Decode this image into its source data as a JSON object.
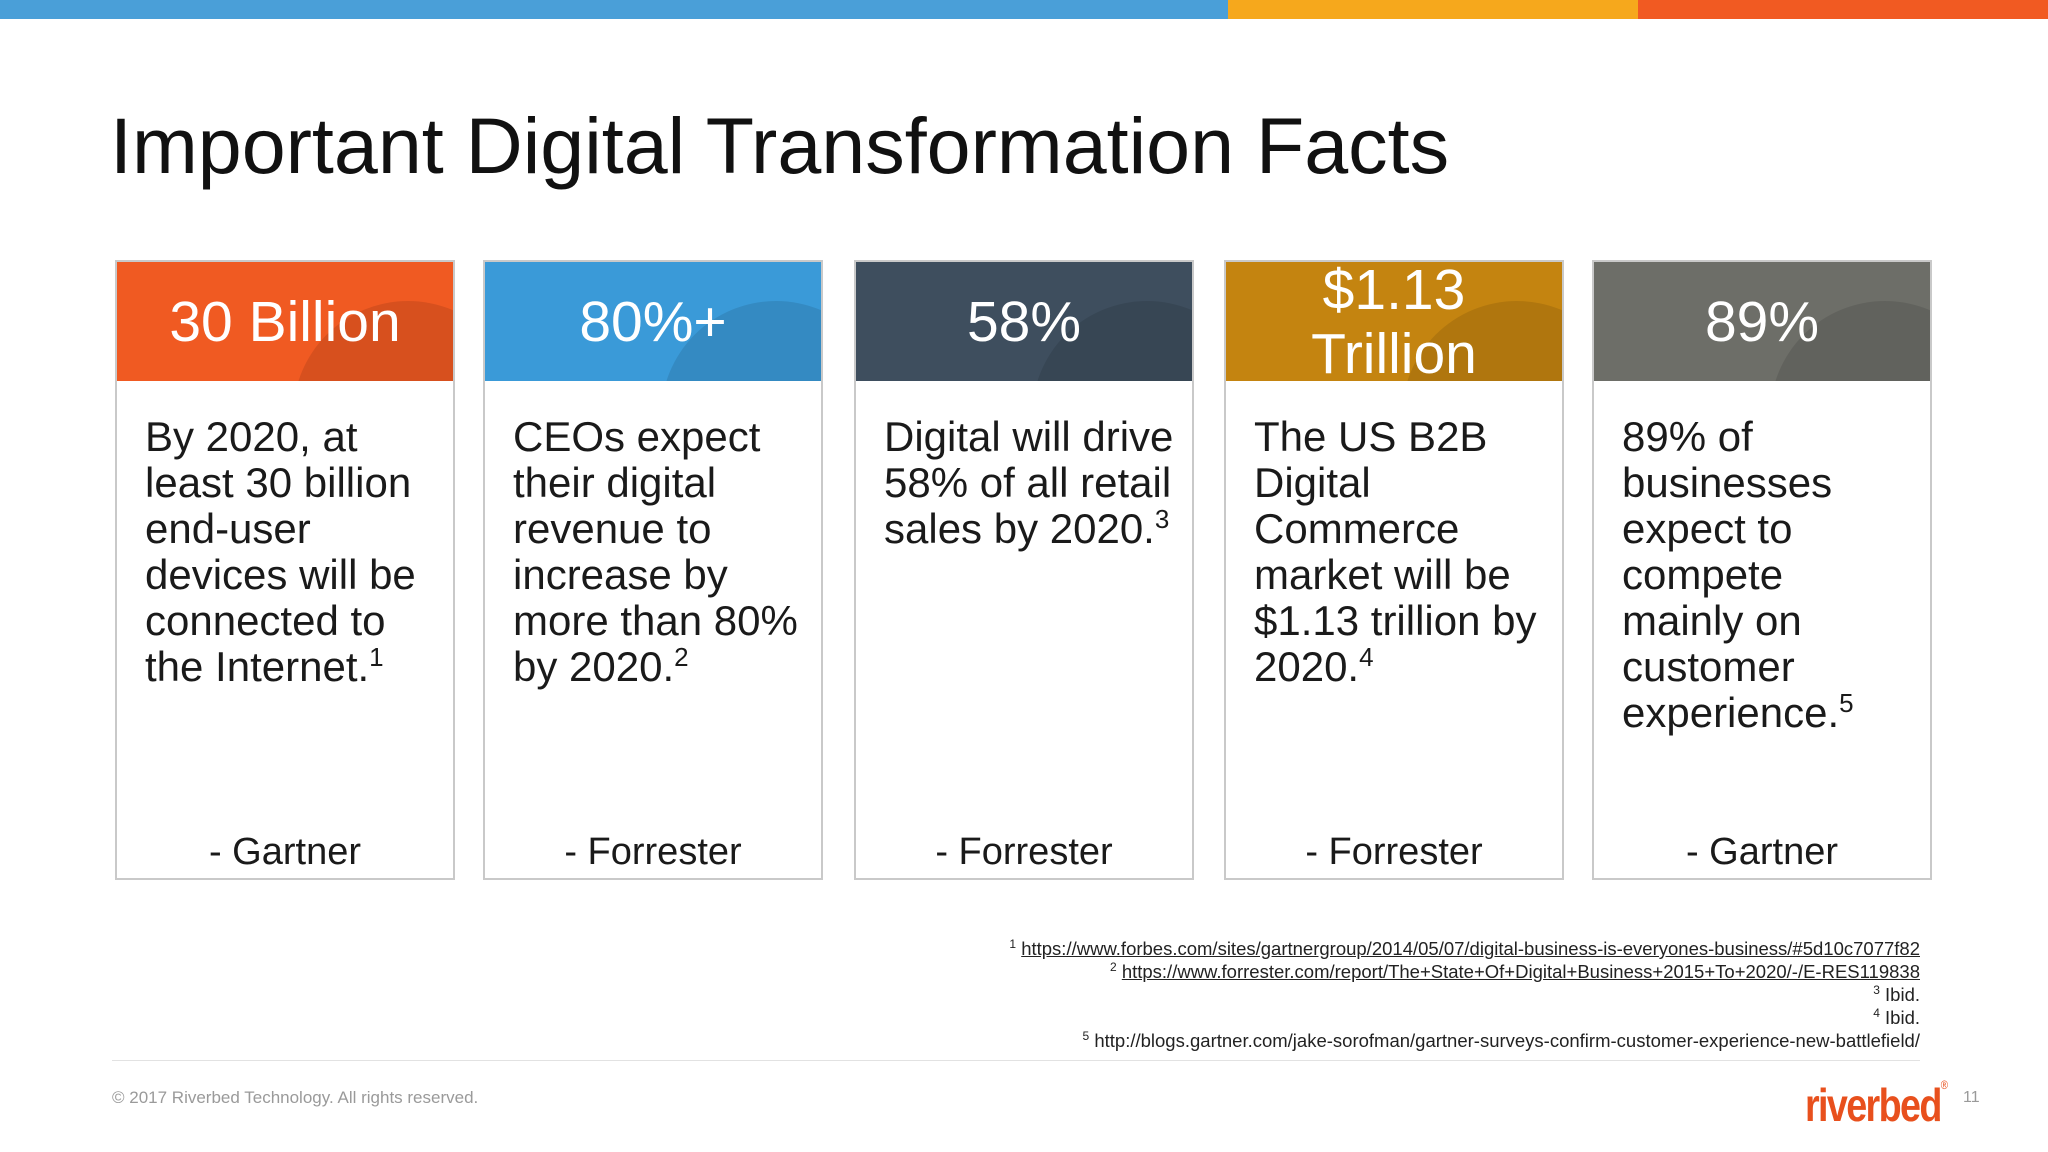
{
  "colors": {
    "bar_blue": "#4a9fd8",
    "bar_yellow": "#f6a81c",
    "bar_orange": "#f15a22",
    "brand": "#e8501d"
  },
  "slide": {
    "title": "Important Digital Transformation Facts",
    "page_number": "11"
  },
  "cards": [
    {
      "headline": "30 Billion",
      "text": "By 2020, at least 30 billion end-user devices will be connected to the Internet.",
      "ref": "1",
      "source": "- Gartner",
      "color": "#f05a22"
    },
    {
      "headline": "80%+",
      "text": "CEOs expect their digital revenue to increase by more than 80% by 2020.",
      "ref": "2",
      "source": "- Forrester",
      "color": "#3a9ad8"
    },
    {
      "headline": "58%",
      "text": "Digital will drive 58% of all retail sales by 2020.",
      "ref": "3",
      "source": "- Forrester",
      "color": "#3e4e5e"
    },
    {
      "headline": "$1.13 Trillion",
      "text": "The US B2B Digital Commerce market will be $1.13 trillion by 2020.",
      "ref": "4",
      "source": "- Forrester",
      "color": "#c48410"
    },
    {
      "headline": "89%",
      "text": "89% of businesses expect to compete mainly on customer experience.",
      "ref": "5",
      "source": "- Gartner",
      "color": "#6d6e68"
    }
  ],
  "footnotes": [
    {
      "num": "1",
      "text": "https://www.forbes.com/sites/gartnergroup/2014/05/07/digital-business-is-everyones-business/#5d10c7077f82",
      "link": true
    },
    {
      "num": "2",
      "text": "https://www.forrester.com/report/The+State+Of+Digital+Business+2015+To+2020/-/E-RES119838",
      "link": true
    },
    {
      "num": "3",
      "text": "Ibid.",
      "link": false
    },
    {
      "num": "4",
      "text": "Ibid.",
      "link": false
    },
    {
      "num": "5",
      "text": "http://blogs.gartner.com/jake-sorofman/gartner-surveys-confirm-customer-experience-new-battlefield/",
      "link": false
    }
  ],
  "footer": {
    "copyright": "© 2017 Riverbed Technology. All rights reserved.",
    "logo": "riverbed",
    "trademark": "®"
  }
}
